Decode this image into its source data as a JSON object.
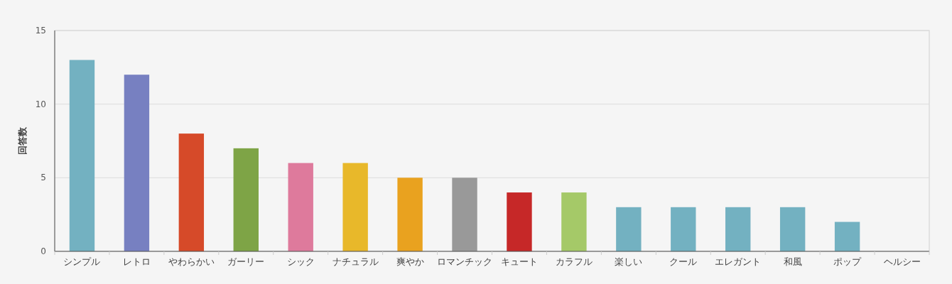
{
  "chart_data": {
    "type": "bar",
    "ylabel": "回答数",
    "categories": [
      "シンプル",
      "レトロ",
      "やわらかい",
      "ガーリー",
      "シック",
      "ナチュラル",
      "爽やか",
      "ロマンチック",
      "キュート",
      "カラフル",
      "楽しい",
      "クール",
      "エレガント",
      "和風",
      "ポップ",
      "ヘルシー"
    ],
    "values": [
      13,
      12,
      8,
      7,
      6,
      6,
      5,
      5,
      4,
      4,
      3,
      3,
      3,
      3,
      2,
      0
    ],
    "colors": [
      "#73b1c1",
      "#7780c1",
      "#d64a29",
      "#7ea446",
      "#de7a9c",
      "#e8b82a",
      "#e9a21f",
      "#999999",
      "#c62828",
      "#a5c968",
      "#73b1c1",
      "#73b1c1",
      "#73b1c1",
      "#73b1c1",
      "#73b1c1",
      "#73b1c1"
    ],
    "ylim": [
      0,
      15
    ],
    "yticks": [
      0,
      5,
      10,
      15
    ],
    "grid": "y"
  }
}
